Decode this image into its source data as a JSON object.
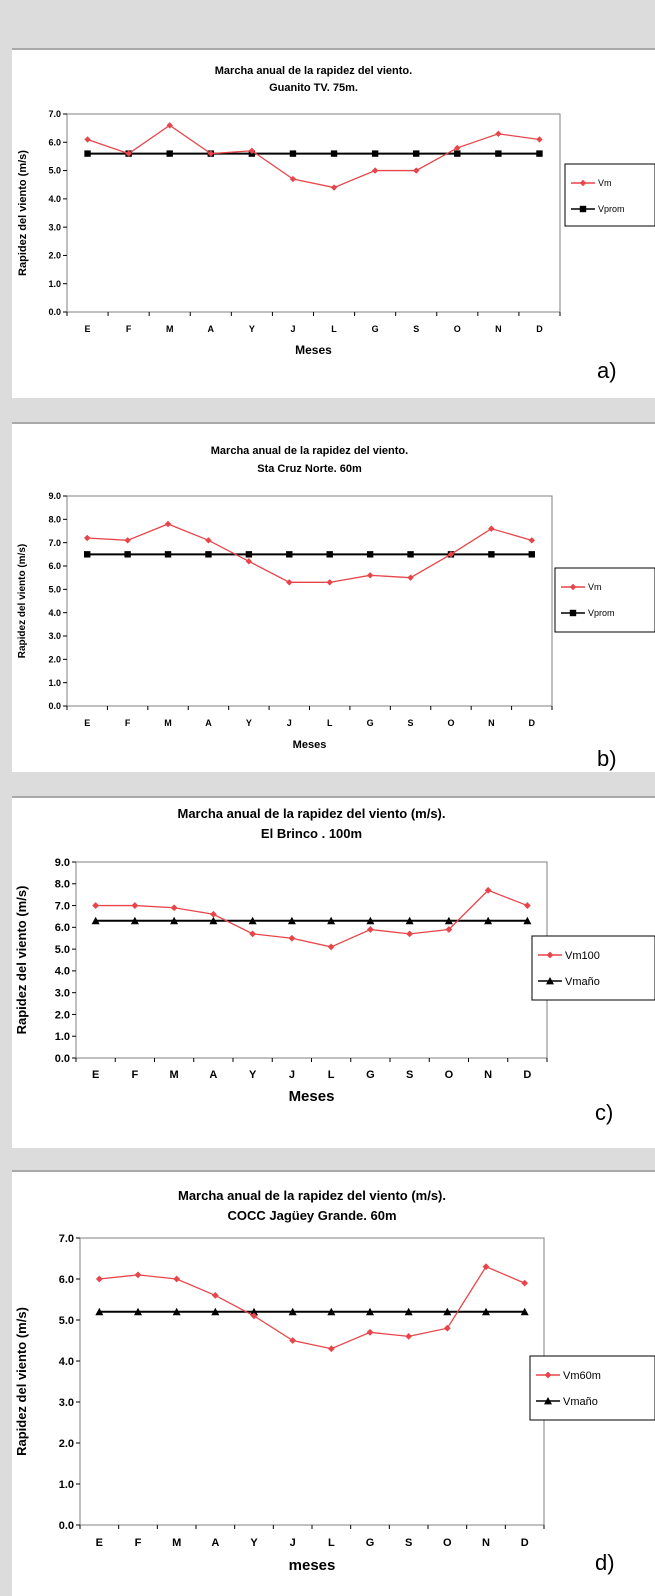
{
  "chart_data": [
    {
      "type": "line",
      "title": "Marcha anual de la rapidez del viento.",
      "subtitle": "Guanito TV. 75m.",
      "xlabel": "Meses",
      "ylabel": "Rapidez del viento (m/s)",
      "categories": [
        "E",
        "F",
        "M",
        "A",
        "Y",
        "J",
        "L",
        "G",
        "S",
        "O",
        "N",
        "D"
      ],
      "ylim": [
        0,
        7
      ],
      "yticks": [
        "0.0",
        "1.0",
        "2.0",
        "3.0",
        "4.0",
        "5.0",
        "6.0",
        "7.0"
      ],
      "series": [
        {
          "name": "Vm",
          "marker": "diamond",
          "color": "#e8454a",
          "values": [
            6.1,
            5.6,
            6.6,
            5.6,
            5.7,
            4.7,
            4.4,
            5.0,
            5.0,
            5.8,
            6.3,
            6.1
          ]
        },
        {
          "name": "Vprom",
          "marker": "square",
          "color": "#000000",
          "values": [
            5.6,
            5.6,
            5.6,
            5.6,
            5.6,
            5.6,
            5.6,
            5.6,
            5.6,
            5.6,
            5.6,
            5.6
          ]
        }
      ],
      "grid": false,
      "legend": "right",
      "panel_label": "a)"
    },
    {
      "type": "line",
      "title": "Marcha anual de la rapidez del viento.",
      "subtitle": "Sta Cruz Norte. 60m",
      "xlabel": "Meses",
      "ylabel": "Rapidez del viento (m/s)",
      "categories": [
        "E",
        "F",
        "M",
        "A",
        "Y",
        "J",
        "L",
        "G",
        "S",
        "O",
        "N",
        "D"
      ],
      "ylim": [
        0,
        9
      ],
      "yticks": [
        "0.0",
        "1.0",
        "2.0",
        "3.0",
        "4.0",
        "5.0",
        "6.0",
        "7.0",
        "8.0",
        "9.0"
      ],
      "series": [
        {
          "name": "Vm",
          "marker": "diamond",
          "color": "#e8454a",
          "values": [
            7.2,
            7.1,
            7.8,
            7.1,
            6.2,
            5.3,
            5.3,
            5.6,
            5.5,
            6.5,
            7.6,
            7.1
          ]
        },
        {
          "name": "Vprom",
          "marker": "square",
          "color": "#000000",
          "values": [
            6.5,
            6.5,
            6.5,
            6.5,
            6.5,
            6.5,
            6.5,
            6.5,
            6.5,
            6.5,
            6.5,
            6.5
          ]
        }
      ],
      "grid": false,
      "legend": "right",
      "panel_label": "b)"
    },
    {
      "type": "line",
      "title": "Marcha anual de la rapidez del viento (m/s).",
      "subtitle": "El Brinco . 100m",
      "xlabel": "Meses",
      "ylabel": "Rapidez del viento (m/s)",
      "categories": [
        "E",
        "F",
        "M",
        "A",
        "Y",
        "J",
        "L",
        "G",
        "S",
        "O",
        "N",
        "D"
      ],
      "ylim": [
        0,
        9
      ],
      "yticks": [
        "0.0",
        "1.0",
        "2.0",
        "3.0",
        "4.0",
        "5.0",
        "6.0",
        "7.0",
        "8.0",
        "9.0"
      ],
      "series": [
        {
          "name": "Vm100",
          "marker": "diamond",
          "color": "#e8454a",
          "values": [
            7.0,
            7.0,
            6.9,
            6.6,
            5.7,
            5.5,
            5.1,
            5.9,
            5.7,
            5.9,
            7.7,
            7.0
          ]
        },
        {
          "name": "Vmaño",
          "marker": "triangle",
          "color": "#000000",
          "values": [
            6.3,
            6.3,
            6.3,
            6.3,
            6.3,
            6.3,
            6.3,
            6.3,
            6.3,
            6.3,
            6.3,
            6.3
          ]
        }
      ],
      "grid": false,
      "legend": "right",
      "panel_label": "c)"
    },
    {
      "type": "line",
      "title": "Marcha anual de la rapidez del viento (m/s).",
      "subtitle": "COCC Jagüey Grande. 60m",
      "xlabel": "meses",
      "ylabel": "Rapidez del viento (m/s)",
      "categories": [
        "E",
        "F",
        "M",
        "A",
        "Y",
        "J",
        "L",
        "G",
        "S",
        "O",
        "N",
        "D"
      ],
      "ylim": [
        0,
        7
      ],
      "yticks": [
        "0.0",
        "1.0",
        "2.0",
        "3.0",
        "4.0",
        "5.0",
        "6.0",
        "7.0"
      ],
      "series": [
        {
          "name": "Vm60m",
          "marker": "diamond",
          "color": "#e8454a",
          "values": [
            6.0,
            6.1,
            6.0,
            5.6,
            5.1,
            4.5,
            4.3,
            4.7,
            4.6,
            4.8,
            6.3,
            5.9
          ]
        },
        {
          "name": "Vmaño",
          "marker": "triangle",
          "color": "#000000",
          "values": [
            5.2,
            5.2,
            5.2,
            5.2,
            5.2,
            5.2,
            5.2,
            5.2,
            5.2,
            5.2,
            5.2,
            5.2
          ]
        }
      ],
      "grid": false,
      "legend": "right",
      "panel_label": "d)"
    }
  ]
}
